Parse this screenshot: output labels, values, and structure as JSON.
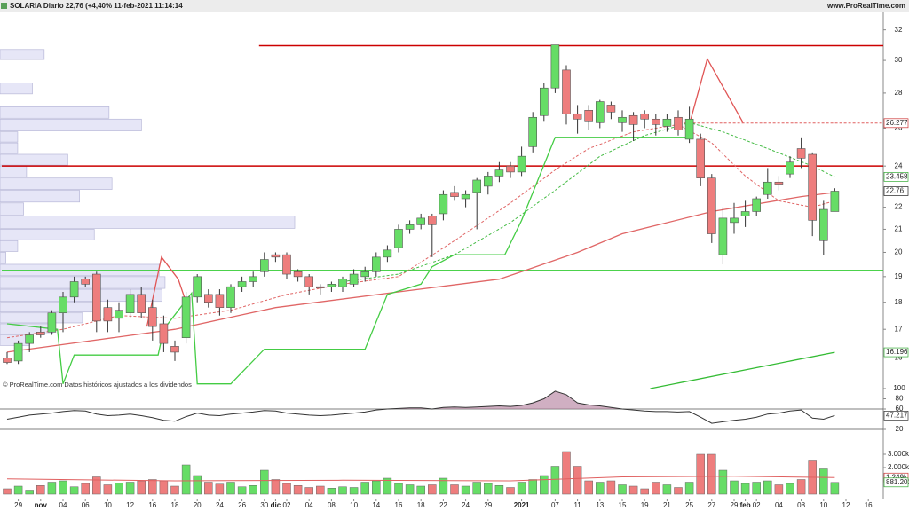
{
  "header": {
    "title": "SOLARIA Diario 22,76 (+4,40% 11-feb-2021 11:14:14",
    "site": "www.ProRealTime.com"
  },
  "note": "© ProRealTime.com  Datos históricos ajustados a los dividendos",
  "chart_data": [
    {
      "type": "candlestick",
      "log_scale": true,
      "ylim": [
        15,
        33.2
      ],
      "yticks": [
        16,
        17,
        18,
        19,
        20,
        21,
        22,
        24,
        26,
        28,
        30,
        32
      ],
      "up_color": "#66dd66",
      "down_color": "#ee7d7d",
      "open": [
        16.0,
        15.9,
        16.5,
        16.9,
        16.9,
        17.6,
        18.2,
        18.9,
        19.1,
        17.8,
        17.4,
        17.6,
        18.3,
        17.8,
        17.2,
        16.4,
        16.7,
        18.2,
        18.3,
        18.3,
        17.8,
        18.6,
        18.8,
        19.2,
        19.9,
        19.9,
        19.2,
        19.0,
        18.6,
        18.6,
        18.6,
        18.7,
        19.0,
        19.2,
        19.8,
        20.2,
        21.0,
        21.2,
        21.6,
        21.7,
        22.7,
        22.4,
        22.7,
        23.0,
        23.5,
        24.0,
        23.7,
        25.0,
        26.7,
        28.3,
        29.4,
        26.8,
        27.0,
        26.3,
        27.3,
        26.3,
        26.7,
        26.8,
        26.5,
        26.1,
        26.6,
        25.4,
        25.4,
        23.4,
        19.9,
        21.3,
        21.6,
        21.8,
        22.6,
        23.2,
        23.6,
        24.9,
        24.6,
        20.5,
        21.8,
        null,
        null,
        null
      ],
      "high": [
        16.2,
        16.6,
        16.9,
        17.1,
        17.7,
        18.4,
        19.0,
        19.0,
        19.2,
        18.1,
        18.0,
        18.5,
        18.6,
        18.1,
        17.5,
        16.6,
        18.4,
        19.1,
        18.5,
        18.5,
        18.7,
        19.0,
        19.2,
        20.0,
        20.0,
        20.0,
        19.3,
        19.1,
        18.7,
        18.8,
        19.0,
        19.3,
        19.4,
        20.0,
        20.3,
        21.2,
        21.4,
        21.7,
        21.7,
        22.8,
        23.0,
        22.8,
        23.4,
        23.7,
        24.2,
        24.2,
        25.0,
        26.9,
        28.6,
        31.0,
        29.7,
        27.3,
        27.3,
        27.6,
        27.5,
        27.0,
        26.9,
        27.0,
        26.8,
        26.8,
        27.0,
        27.2,
        25.7,
        23.6,
        22.0,
        22.2,
        22.3,
        22.5,
        23.9,
        23.5,
        24.5,
        25.5,
        24.7,
        22.3,
        22.9,
        null,
        null,
        null
      ],
      "low": [
        15.8,
        15.8,
        16.2,
        16.7,
        16.8,
        16.9,
        18.0,
        18.6,
        16.9,
        16.9,
        16.9,
        17.4,
        17.4,
        16.6,
        16.2,
        15.9,
        16.5,
        18.0,
        17.8,
        17.5,
        17.6,
        18.4,
        18.6,
        19.0,
        19.6,
        18.9,
        18.8,
        18.3,
        18.3,
        18.4,
        18.4,
        18.6,
        18.8,
        19.0,
        19.6,
        20.0,
        20.8,
        21.0,
        19.8,
        21.4,
        22.3,
        22.0,
        21.0,
        22.6,
        23.2,
        23.4,
        23.5,
        24.7,
        26.4,
        28.0,
        26.2,
        25.7,
        25.9,
        26.0,
        26.5,
        25.8,
        25.3,
        26.0,
        25.6,
        25.8,
        25.6,
        25.2,
        23.0,
        20.4,
        19.5,
        20.8,
        21.1,
        21.6,
        22.4,
        22.8,
        23.4,
        23.9,
        20.7,
        19.9,
        21.8,
        null,
        null,
        null
      ],
      "close": [
        15.85,
        16.5,
        16.8,
        16.8,
        17.6,
        18.2,
        18.8,
        18.7,
        17.3,
        17.3,
        17.7,
        18.3,
        17.6,
        17.1,
        16.5,
        16.2,
        18.2,
        19.0,
        18.0,
        17.8,
        18.6,
        18.8,
        19.0,
        19.7,
        19.8,
        19.1,
        19.0,
        18.6,
        18.55,
        18.7,
        18.9,
        19.1,
        19.2,
        19.8,
        20.1,
        21.0,
        21.2,
        21.5,
        21.2,
        22.6,
        22.5,
        22.6,
        23.3,
        23.5,
        23.8,
        23.7,
        24.5,
        26.6,
        28.3,
        31.0,
        26.8,
        26.5,
        26.4,
        27.5,
        26.9,
        26.6,
        26.2,
        26.5,
        26.2,
        26.5,
        25.9,
        26.5,
        23.4,
        20.8,
        21.5,
        21.5,
        21.8,
        22.4,
        23.2,
        23.1,
        24.2,
        24.4,
        21.4,
        21.9,
        22.76,
        null,
        null,
        null
      ],
      "overlays": [
        {
          "color": "#e06666",
          "dash": false,
          "x": [
            0,
            15,
            24,
            35,
            44,
            46,
            51,
            55,
            63,
            71,
            74
          ],
          "values": [
            16.2,
            17.0,
            17.8,
            18.4,
            18.9,
            19.2,
            20.0,
            20.8,
            21.8,
            22.5,
            22.7
          ]
        },
        {
          "color": "#e06666",
          "dash": true,
          "x": [
            0,
            5,
            10,
            15,
            20,
            25,
            30,
            35,
            40,
            45,
            49,
            52,
            56,
            60,
            63,
            66,
            69,
            72,
            74
          ],
          "values": [
            16.7,
            17.0,
            17.5,
            17.4,
            17.7,
            18.3,
            18.7,
            19.0,
            20.5,
            22.2,
            23.8,
            24.9,
            25.8,
            26.2,
            25.2,
            23.5,
            22.3,
            22.0,
            22.3
          ]
        },
        {
          "color": "#44bb44",
          "dash": true,
          "x": [
            30,
            35,
            40,
            45,
            49,
            53,
            57,
            61,
            64,
            68,
            72,
            74
          ],
          "values": [
            18.8,
            19.1,
            19.9,
            21.3,
            22.8,
            24.5,
            25.6,
            26.3,
            25.8,
            24.9,
            24.0,
            23.458
          ]
        },
        {
          "color": "#44cc44",
          "dash": false,
          "x": [
            0,
            4.5,
            5,
            6,
            13.5,
            14,
            16.5,
            17,
            20,
            23,
            32,
            34,
            37,
            38,
            40,
            44.5,
            46,
            49,
            61
          ],
          "values": [
            17.2,
            17.0,
            15.15,
            16.1,
            16.1,
            17.0,
            18.35,
            15.15,
            15.15,
            16.3,
            16.3,
            18.3,
            18.7,
            19.4,
            19.9,
            19.9,
            21.4,
            25.5,
            25.5
          ]
        },
        {
          "color": "#e05555",
          "dash": false,
          "x": [
            12.5,
            13.8,
            15.3,
            16
          ],
          "values": [
            17.1,
            19.8,
            18.9,
            18.0
          ]
        },
        {
          "color": "#e05555",
          "dash": false,
          "x": [
            61,
            62.6,
            65.8
          ],
          "values": [
            26.2,
            30.1,
            26.3
          ]
        },
        {
          "color": "#33bb33",
          "dash": false,
          "x": [
            57.5,
            74
          ],
          "values": [
            15.0,
            16.196
          ]
        }
      ],
      "hlines": [
        {
          "value": 30.95,
          "color": "#cc0000",
          "from": 23,
          "dash": false
        },
        {
          "value": 24.0,
          "color": "#cc0000",
          "from": 0,
          "dash": false
        },
        {
          "value": 19.25,
          "color": "#33cc33",
          "from": 0,
          "dash": false
        },
        {
          "value": 26.277,
          "color": "#e06060",
          "from": 61,
          "dash": true
        }
      ],
      "price_labels": [
        {
          "value": 26.277,
          "color": "#cc3333"
        },
        {
          "value": 23.458,
          "color": "#33aa33"
        },
        {
          "value": 22.76,
          "color": "#222222"
        },
        {
          "value": 16.196,
          "color": "#33aa33"
        }
      ],
      "volume_profile": {
        "color": "#e6e6f7",
        "bins": [
          16.4,
          16.8,
          17.2,
          17.6,
          18.0,
          18.5,
          19.0,
          19.5,
          20.0,
          20.5,
          21.0,
          21.6,
          22.2,
          22.8,
          23.4,
          24.0,
          24.6,
          25.2,
          25.8,
          26.5,
          27.2,
          27.9,
          28.6,
          29.3,
          30.0,
          30.7,
          31.4
        ],
        "values": [
          10,
          18,
          28,
          34,
          55,
          56,
          54,
          2,
          6,
          32,
          100,
          8,
          27,
          38,
          9,
          23,
          6,
          6,
          48,
          37,
          0,
          11,
          0,
          0,
          15,
          0
        ]
      }
    },
    {
      "type": "line",
      "color": "#333333",
      "fill_color": "#b07a9a",
      "ylim": [
        14.8,
        101.7
      ],
      "yticks": [
        100,
        80,
        60,
        20
      ],
      "levels": [
        60,
        20
      ],
      "values": [
        40,
        44,
        48,
        50,
        52,
        55,
        57,
        56,
        50,
        47,
        48,
        50,
        47,
        43,
        38,
        36,
        45,
        52,
        48,
        47,
        50,
        52,
        54,
        57,
        56,
        52,
        50,
        48,
        47,
        48,
        50,
        52,
        54,
        58,
        60,
        61,
        62,
        62,
        60,
        63,
        64,
        63,
        64,
        65,
        66,
        65,
        67,
        72,
        80,
        95,
        88,
        72,
        68,
        66,
        63,
        60,
        58,
        56,
        55,
        55,
        54,
        55,
        44,
        32,
        35,
        38,
        40,
        44,
        50,
        52,
        56,
        58,
        42,
        40,
        47.217,
        null,
        null,
        null
      ],
      "last_label": {
        "value": 47.217
      }
    },
    {
      "type": "bar",
      "ylim": [
        0,
        3600
      ],
      "yticks": [
        {
          "value": 3000,
          "label": "3.000k"
        },
        {
          "value": 2000,
          "label": "2.000k"
        }
      ],
      "categories": [
        null,
        "29",
        null,
        "nov",
        null,
        "04",
        null,
        "06",
        null,
        "10",
        null,
        "12",
        null,
        "16",
        null,
        "18",
        null,
        "20",
        null,
        "24",
        null,
        "26",
        null,
        "30",
        "dic",
        "02",
        null,
        "04",
        null,
        "08",
        null,
        "10",
        null,
        "14",
        null,
        "16",
        null,
        "18",
        null,
        "22",
        null,
        "24",
        null,
        "29",
        null,
        null,
        "2021",
        null,
        null,
        "07",
        null,
        "11",
        null,
        "13",
        null,
        "15",
        null,
        "19",
        null,
        "21",
        null,
        "25",
        null,
        "27",
        null,
        "29",
        "feb",
        "02",
        null,
        "04",
        null,
        "08",
        null,
        "10",
        null,
        "12",
        null,
        "16"
      ],
      "values": [
        400,
        600,
        300,
        650,
        900,
        1000,
        550,
        800,
        1300,
        700,
        850,
        900,
        1000,
        1100,
        1000,
        600,
        2200,
        1400,
        900,
        750,
        900,
        550,
        650,
        1800,
        1100,
        800,
        650,
        500,
        600,
        450,
        550,
        500,
        900,
        1000,
        1200,
        800,
        700,
        600,
        700,
        1200,
        700,
        600,
        900,
        800,
        650,
        500,
        900,
        1100,
        1400,
        2100,
        3200,
        2100,
        1000,
        900,
        1000,
        700,
        600,
        400,
        900,
        700,
        500,
        900,
        3000,
        3000,
        1800,
        1000,
        800,
        900,
        1000,
        700,
        800,
        1100,
        2500,
        1900,
        881.201,
        null,
        null,
        null
      ],
      "ma": {
        "color": "#e06060",
        "x": [
          0,
          15,
          30,
          45,
          55,
          65,
          74
        ],
        "values": [
          1150,
          1000,
          1050,
          1000,
          1300,
          1350,
          1249
        ]
      },
      "value_labels": [
        {
          "value": 1249,
          "label": "1.249k",
          "color": "#cc3333"
        },
        {
          "value": 881.201,
          "label": "881.201",
          "color": "#33aa33"
        }
      ]
    }
  ]
}
